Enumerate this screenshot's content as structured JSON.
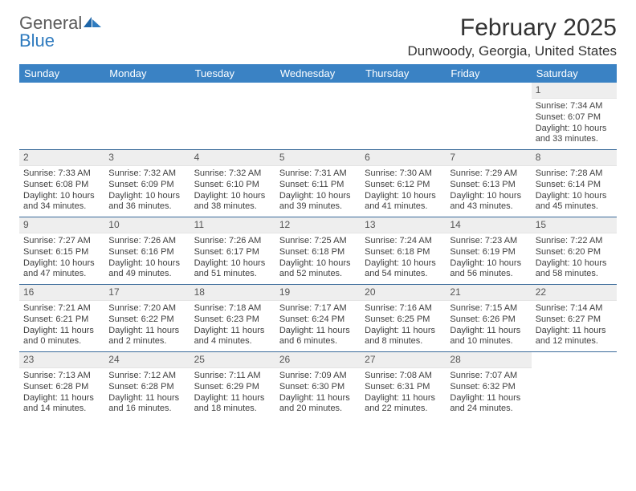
{
  "logo": {
    "line1": "General",
    "line2": "Blue"
  },
  "colors": {
    "header_bg": "#3a82c4",
    "header_text": "#ffffff",
    "logo_gray": "#5a5a5a",
    "logo_blue": "#2f7bbf",
    "daynum_bg": "#eeeeee",
    "rule": "#3a6a9a"
  },
  "title": "February 2025",
  "location": "Dunwoody, Georgia, United States",
  "day_names": [
    "Sunday",
    "Monday",
    "Tuesday",
    "Wednesday",
    "Thursday",
    "Friday",
    "Saturday"
  ],
  "weeks": [
    [
      null,
      null,
      null,
      null,
      null,
      null,
      {
        "n": "1",
        "sr": "Sunrise: 7:34 AM",
        "ss": "Sunset: 6:07 PM",
        "dl": "Daylight: 10 hours and 33 minutes."
      }
    ],
    [
      {
        "n": "2",
        "sr": "Sunrise: 7:33 AM",
        "ss": "Sunset: 6:08 PM",
        "dl": "Daylight: 10 hours and 34 minutes."
      },
      {
        "n": "3",
        "sr": "Sunrise: 7:32 AM",
        "ss": "Sunset: 6:09 PM",
        "dl": "Daylight: 10 hours and 36 minutes."
      },
      {
        "n": "4",
        "sr": "Sunrise: 7:32 AM",
        "ss": "Sunset: 6:10 PM",
        "dl": "Daylight: 10 hours and 38 minutes."
      },
      {
        "n": "5",
        "sr": "Sunrise: 7:31 AM",
        "ss": "Sunset: 6:11 PM",
        "dl": "Daylight: 10 hours and 39 minutes."
      },
      {
        "n": "6",
        "sr": "Sunrise: 7:30 AM",
        "ss": "Sunset: 6:12 PM",
        "dl": "Daylight: 10 hours and 41 minutes."
      },
      {
        "n": "7",
        "sr": "Sunrise: 7:29 AM",
        "ss": "Sunset: 6:13 PM",
        "dl": "Daylight: 10 hours and 43 minutes."
      },
      {
        "n": "8",
        "sr": "Sunrise: 7:28 AM",
        "ss": "Sunset: 6:14 PM",
        "dl": "Daylight: 10 hours and 45 minutes."
      }
    ],
    [
      {
        "n": "9",
        "sr": "Sunrise: 7:27 AM",
        "ss": "Sunset: 6:15 PM",
        "dl": "Daylight: 10 hours and 47 minutes."
      },
      {
        "n": "10",
        "sr": "Sunrise: 7:26 AM",
        "ss": "Sunset: 6:16 PM",
        "dl": "Daylight: 10 hours and 49 minutes."
      },
      {
        "n": "11",
        "sr": "Sunrise: 7:26 AM",
        "ss": "Sunset: 6:17 PM",
        "dl": "Daylight: 10 hours and 51 minutes."
      },
      {
        "n": "12",
        "sr": "Sunrise: 7:25 AM",
        "ss": "Sunset: 6:18 PM",
        "dl": "Daylight: 10 hours and 52 minutes."
      },
      {
        "n": "13",
        "sr": "Sunrise: 7:24 AM",
        "ss": "Sunset: 6:18 PM",
        "dl": "Daylight: 10 hours and 54 minutes."
      },
      {
        "n": "14",
        "sr": "Sunrise: 7:23 AM",
        "ss": "Sunset: 6:19 PM",
        "dl": "Daylight: 10 hours and 56 minutes."
      },
      {
        "n": "15",
        "sr": "Sunrise: 7:22 AM",
        "ss": "Sunset: 6:20 PM",
        "dl": "Daylight: 10 hours and 58 minutes."
      }
    ],
    [
      {
        "n": "16",
        "sr": "Sunrise: 7:21 AM",
        "ss": "Sunset: 6:21 PM",
        "dl": "Daylight: 11 hours and 0 minutes."
      },
      {
        "n": "17",
        "sr": "Sunrise: 7:20 AM",
        "ss": "Sunset: 6:22 PM",
        "dl": "Daylight: 11 hours and 2 minutes."
      },
      {
        "n": "18",
        "sr": "Sunrise: 7:18 AM",
        "ss": "Sunset: 6:23 PM",
        "dl": "Daylight: 11 hours and 4 minutes."
      },
      {
        "n": "19",
        "sr": "Sunrise: 7:17 AM",
        "ss": "Sunset: 6:24 PM",
        "dl": "Daylight: 11 hours and 6 minutes."
      },
      {
        "n": "20",
        "sr": "Sunrise: 7:16 AM",
        "ss": "Sunset: 6:25 PM",
        "dl": "Daylight: 11 hours and 8 minutes."
      },
      {
        "n": "21",
        "sr": "Sunrise: 7:15 AM",
        "ss": "Sunset: 6:26 PM",
        "dl": "Daylight: 11 hours and 10 minutes."
      },
      {
        "n": "22",
        "sr": "Sunrise: 7:14 AM",
        "ss": "Sunset: 6:27 PM",
        "dl": "Daylight: 11 hours and 12 minutes."
      }
    ],
    [
      {
        "n": "23",
        "sr": "Sunrise: 7:13 AM",
        "ss": "Sunset: 6:28 PM",
        "dl": "Daylight: 11 hours and 14 minutes."
      },
      {
        "n": "24",
        "sr": "Sunrise: 7:12 AM",
        "ss": "Sunset: 6:28 PM",
        "dl": "Daylight: 11 hours and 16 minutes."
      },
      {
        "n": "25",
        "sr": "Sunrise: 7:11 AM",
        "ss": "Sunset: 6:29 PM",
        "dl": "Daylight: 11 hours and 18 minutes."
      },
      {
        "n": "26",
        "sr": "Sunrise: 7:09 AM",
        "ss": "Sunset: 6:30 PM",
        "dl": "Daylight: 11 hours and 20 minutes."
      },
      {
        "n": "27",
        "sr": "Sunrise: 7:08 AM",
        "ss": "Sunset: 6:31 PM",
        "dl": "Daylight: 11 hours and 22 minutes."
      },
      {
        "n": "28",
        "sr": "Sunrise: 7:07 AM",
        "ss": "Sunset: 6:32 PM",
        "dl": "Daylight: 11 hours and 24 minutes."
      },
      null
    ]
  ]
}
